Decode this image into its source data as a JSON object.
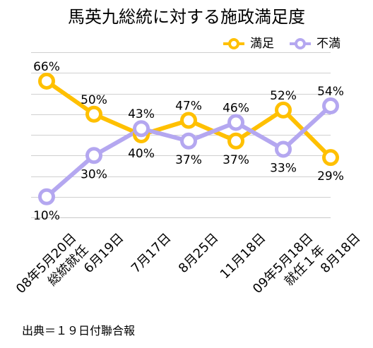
{
  "chart_data": {
    "type": "line",
    "title": "馬英九総統に対する施政満足度",
    "categories": [
      [
        "08年5月20日",
        "総統就任"
      ],
      [
        "6月19日"
      ],
      [
        "7月17日"
      ],
      [
        "8月25日"
      ],
      [
        "11月18日"
      ],
      [
        "09年5月18日",
        "就任１年"
      ],
      [
        "8月18日"
      ]
    ],
    "series": [
      {
        "name": "満足",
        "values": [
          66,
          50,
          40,
          47,
          37,
          52,
          29
        ],
        "labels": [
          "66%",
          "50%",
          "40%",
          "47%",
          "37%",
          "52%",
          "29%"
        ],
        "color": "#FFC000"
      },
      {
        "name": "不満",
        "values": [
          10,
          30,
          43,
          37,
          46,
          33,
          54
        ],
        "labels": [
          "10%",
          "30%",
          "43%",
          "37%",
          "46%",
          "33%",
          "54%"
        ],
        "color": "#B4A7F0"
      }
    ],
    "ylim": [
      0,
      80
    ],
    "grid": true,
    "legend": "top-right"
  },
  "source": "出典＝１９日付聯合報"
}
